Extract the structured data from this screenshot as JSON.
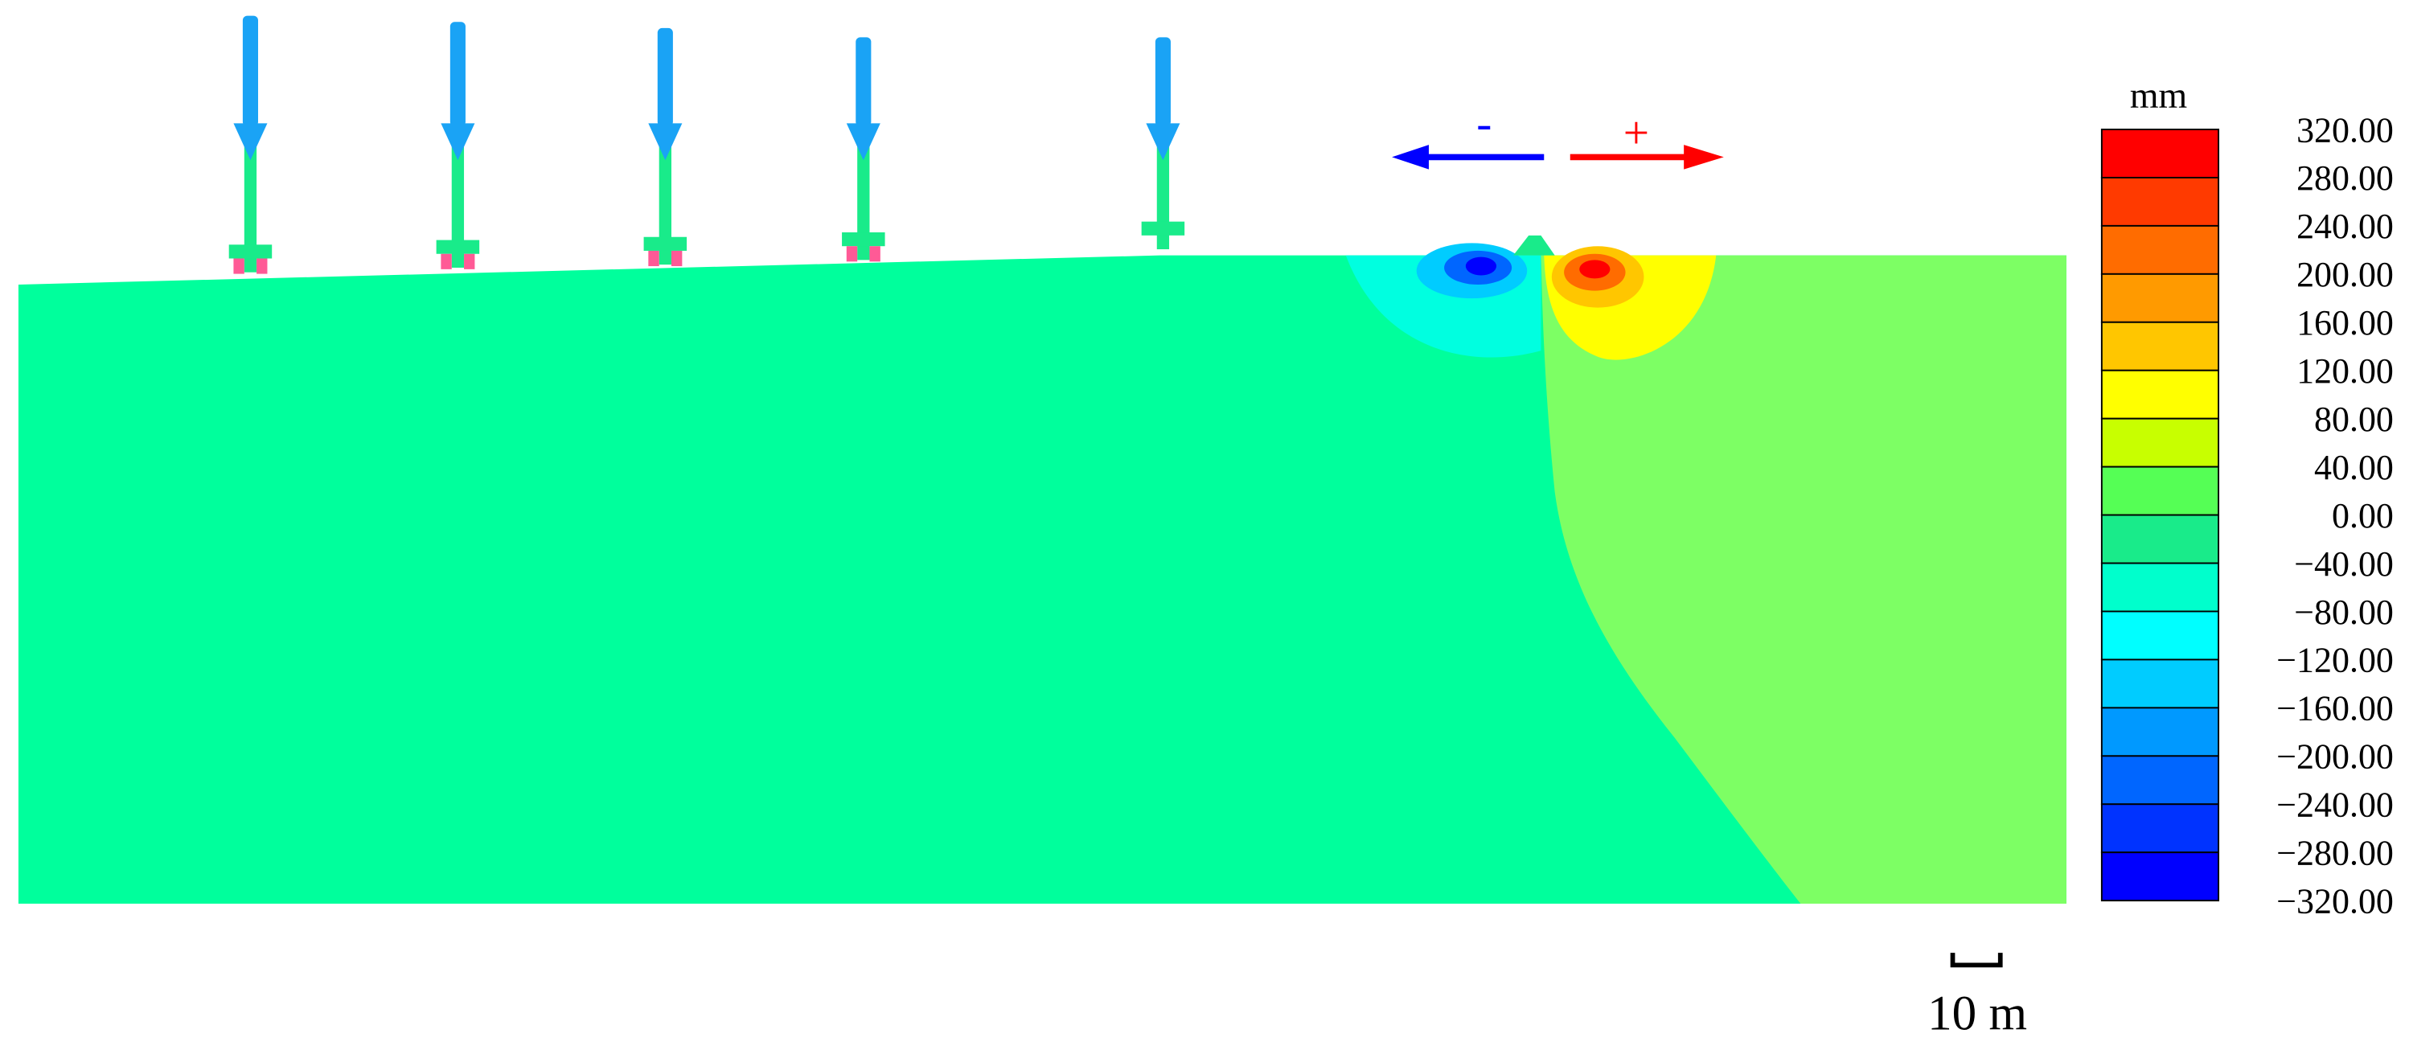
{
  "colorbar": {
    "unit": "mm",
    "labels": [
      "320.00",
      "280.00",
      "240.00",
      "200.00",
      "160.00",
      "120.00",
      "80.00",
      "40.00",
      "0.00",
      "−40.00",
      "−80.00",
      "−120.00",
      "−160.00",
      "−200.00",
      "−240.00",
      "−280.00",
      "−320.00"
    ],
    "colors": [
      "#ff0000",
      "#ff3a00",
      "#ff6c00",
      "#ff9a00",
      "#ffc600",
      "#ffff00",
      "#c8ff00",
      "#55ff55",
      "#19eb8a",
      "#00ffcc",
      "#00ffff",
      "#00ccff",
      "#0099ff",
      "#0066ff",
      "#0033ff",
      "#0000ff"
    ]
  },
  "arrows": {
    "negative": "-",
    "positive": "+"
  },
  "scale_bar": "10 m"
}
